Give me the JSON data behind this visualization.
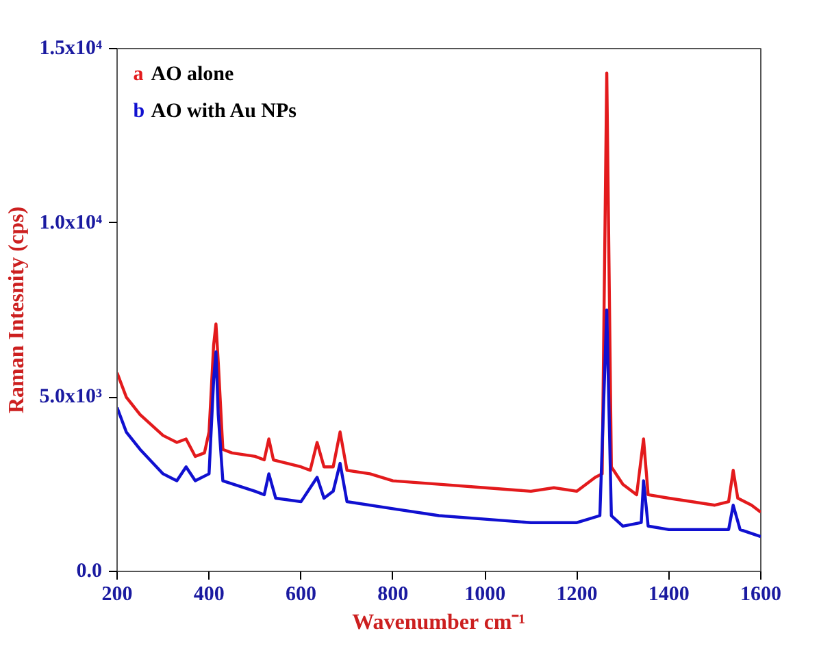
{
  "chart_data": {
    "type": "line",
    "xlabel": "Wavenumber cm⁻¹",
    "ylabel": "Raman Intesnity (cps)",
    "xlim": [
      200,
      1600
    ],
    "xticks": [
      200,
      400,
      600,
      800,
      1000,
      1200,
      1400,
      1600
    ],
    "ylim": [
      0,
      15000
    ],
    "yticks": [
      {
        "value": 0,
        "label": "0.0"
      },
      {
        "value": 5000,
        "label": "5.0x10³"
      },
      {
        "value": 10000,
        "label": "1.0x10⁴"
      },
      {
        "value": 15000,
        "label": "1.5x10⁴"
      }
    ],
    "grid": false,
    "legend": "top left",
    "series": [
      {
        "name": "a AO alone",
        "color": "#e31a1c",
        "x": [
          200,
          220,
          250,
          300,
          330,
          350,
          370,
          390,
          400,
          410,
          415,
          420,
          430,
          450,
          500,
          520,
          530,
          540,
          600,
          620,
          635,
          650,
          670,
          685,
          700,
          750,
          800,
          900,
          1000,
          1100,
          1150,
          1200,
          1240,
          1255,
          1265,
          1275,
          1300,
          1330,
          1345,
          1355,
          1400,
          1500,
          1530,
          1540,
          1550,
          1580,
          1600
        ],
        "values": [
          5700,
          5000,
          4500,
          3900,
          3700,
          3800,
          3300,
          3400,
          4000,
          6500,
          7100,
          6000,
          3500,
          3400,
          3300,
          3200,
          3800,
          3200,
          3000,
          2900,
          3700,
          3000,
          3000,
          4000,
          2900,
          2800,
          2600,
          2500,
          2400,
          2300,
          2400,
          2300,
          2700,
          2800,
          14300,
          3000,
          2500,
          2200,
          3800,
          2200,
          2100,
          1900,
          2000,
          2900,
          2100,
          1900,
          1700
        ]
      },
      {
        "name": "b AO with Au NPs",
        "color": "#1010d0",
        "x": [
          200,
          220,
          250,
          300,
          330,
          350,
          370,
          400,
          410,
          415,
          420,
          430,
          500,
          520,
          530,
          545,
          600,
          635,
          650,
          670,
          685,
          700,
          800,
          900,
          1000,
          1100,
          1200,
          1250,
          1265,
          1275,
          1300,
          1340,
          1345,
          1355,
          1400,
          1500,
          1530,
          1540,
          1555,
          1600
        ],
        "values": [
          4700,
          4000,
          3500,
          2800,
          2600,
          3000,
          2600,
          2800,
          5500,
          6300,
          4500,
          2600,
          2300,
          2200,
          2800,
          2100,
          2000,
          2700,
          2100,
          2300,
          3100,
          2000,
          1800,
          1600,
          1500,
          1400,
          1400,
          1600,
          7500,
          1600,
          1300,
          1400,
          2600,
          1300,
          1200,
          1200,
          1200,
          1900,
          1200,
          1000
        ]
      }
    ]
  }
}
